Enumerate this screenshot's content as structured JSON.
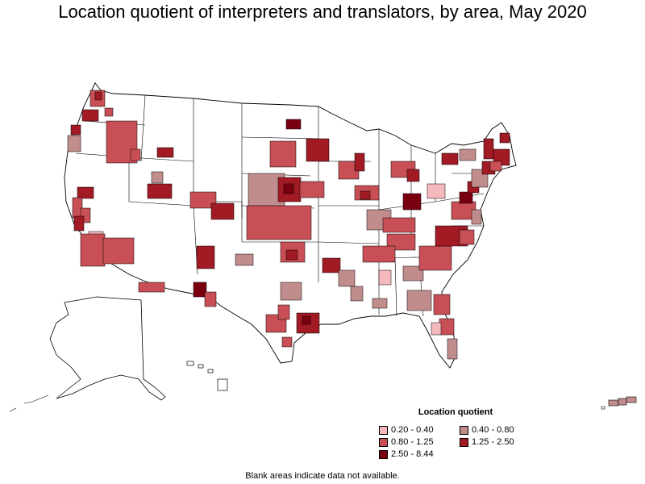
{
  "title": "Location quotient of interpreters and translators, by area, May 2020",
  "legend": {
    "title": "Location quotient",
    "items": [
      {
        "label": "0.20 - 0.40",
        "color": "#f4b8bd"
      },
      {
        "label": "0.40 - 0.80",
        "color": "#c08c8c"
      },
      {
        "label": "0.80 - 1.25",
        "color": "#c84f55"
      },
      {
        "label": "1.25 - 2.50",
        "color": "#a11a24"
      },
      {
        "label": "2.50 - 8.44",
        "color": "#7a0010"
      }
    ]
  },
  "footnote": "Blank areas indicate data not available.",
  "colors": {
    "q1": "#f4b8bd",
    "q2": "#c08c8c",
    "q3": "#c84f55",
    "q4": "#a11a24",
    "q5": "#7a0010",
    "outline": "#000000",
    "blank": "#ffffff"
  }
}
